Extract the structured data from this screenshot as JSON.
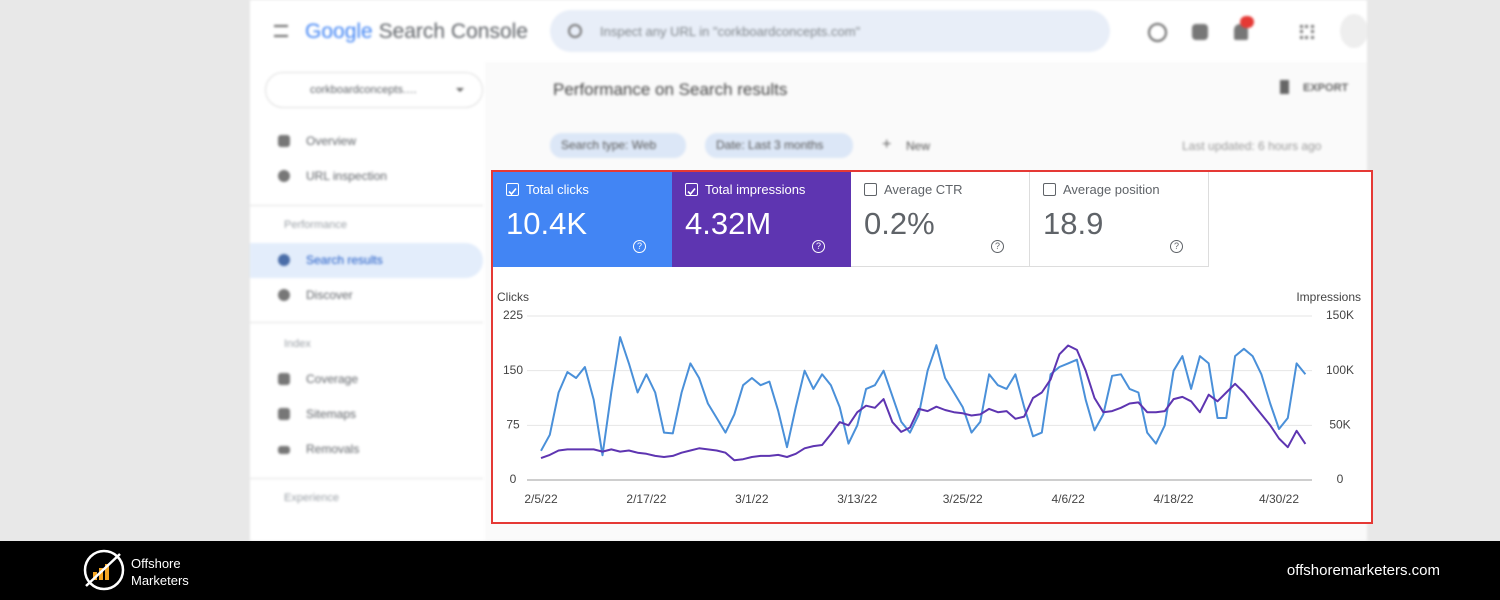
{
  "header": {
    "logo_google": "Google",
    "logo_product": "Search Console",
    "search_placeholder": "Inspect any URL in \"corkboardconcepts.com\""
  },
  "property_selector": "corkboardconcepts.…",
  "sidebar": {
    "top": [
      "Overview",
      "URL inspection"
    ],
    "sections": [
      {
        "title": "Performance",
        "items": [
          "Search results",
          "Discover"
        ]
      },
      {
        "title": "Index",
        "items": [
          "Coverage",
          "Sitemaps",
          "Removals"
        ]
      },
      {
        "title": "Experience"
      }
    ]
  },
  "page": {
    "title": "Performance on Search results",
    "export": "EXPORT",
    "filters": [
      "Search type: Web",
      "Date: Last 3 months"
    ],
    "new_filter": "New",
    "last_updated": "Last updated: 6 hours ago"
  },
  "metrics": [
    {
      "label": "Total clicks",
      "value": "10.4K",
      "checked": true,
      "color": "#4285f4"
    },
    {
      "label": "Total impressions",
      "value": "4.32M",
      "checked": true,
      "color": "#5e35b1"
    },
    {
      "label": "Average CTR",
      "value": "0.2%",
      "checked": false
    },
    {
      "label": "Average position",
      "value": "18.9",
      "checked": false
    }
  ],
  "chart_data": {
    "type": "line",
    "y_label": "Clicks",
    "y2_label": "Impressions",
    "categories": [
      "2/5/22",
      null,
      null,
      null,
      null,
      null,
      null,
      null,
      null,
      null,
      null,
      null,
      "2/17/22",
      null,
      null,
      null,
      null,
      null,
      null,
      null,
      null,
      null,
      null,
      null,
      "3/1/22",
      null,
      null,
      null,
      null,
      null,
      null,
      null,
      null,
      null,
      null,
      null,
      "3/13/22",
      null,
      null,
      null,
      null,
      null,
      null,
      null,
      null,
      null,
      null,
      null,
      "3/25/22",
      null,
      null,
      null,
      null,
      null,
      null,
      null,
      null,
      null,
      null,
      null,
      "4/6/22",
      null,
      null,
      null,
      null,
      null,
      null,
      null,
      null,
      null,
      null,
      null,
      "4/18/22",
      null,
      null,
      null,
      null,
      null,
      null,
      null,
      null,
      null,
      null,
      null,
      "4/30/22",
      null,
      null,
      null
    ],
    "series": [
      {
        "name": "Clicks",
        "color": "#4a90d9",
        "values": [
          40,
          62,
          120,
          148,
          140,
          155,
          110,
          34,
          120,
          196,
          160,
          120,
          145,
          120,
          65,
          64,
          120,
          160,
          140,
          105,
          85,
          65,
          90,
          130,
          140,
          130,
          135,
          95,
          45,
          100,
          150,
          125,
          145,
          130,
          100,
          50,
          75,
          125,
          130,
          150,
          115,
          80,
          65,
          90,
          150,
          185,
          140,
          120,
          100,
          65,
          80,
          145,
          130,
          125,
          145,
          100,
          60,
          65,
          145,
          155,
          160,
          165,
          110,
          68,
          90,
          143,
          145,
          125,
          120,
          65,
          50,
          75,
          150,
          170,
          125,
          170,
          160,
          85,
          85,
          170,
          180,
          170,
          145,
          105,
          70,
          85,
          160,
          145
        ]
      },
      {
        "name": "Impressions",
        "color": "#5e35b1",
        "axis": "y2",
        "values": [
          20000,
          23000,
          27000,
          28000,
          28000,
          28000,
          28000,
          26000,
          28000,
          26000,
          27000,
          25000,
          24000,
          22000,
          21000,
          22000,
          25000,
          27000,
          29000,
          28000,
          27000,
          25000,
          18000,
          19000,
          21000,
          22000,
          22000,
          23000,
          21000,
          24000,
          29000,
          31000,
          32000,
          42000,
          53000,
          50000,
          62000,
          68000,
          66000,
          74000,
          53000,
          44000,
          48000,
          65000,
          63000,
          67000,
          64000,
          62000,
          61000,
          59000,
          60000,
          65000,
          62000,
          63000,
          56000,
          58000,
          75000,
          80000,
          92000,
          115000,
          123000,
          119000,
          100000,
          75000,
          62000,
          63000,
          66000,
          70000,
          71000,
          62000,
          62000,
          63000,
          74000,
          76000,
          72000,
          62000,
          78000,
          72000,
          80000,
          88000,
          80000,
          70000,
          60000,
          50000,
          38000,
          30000,
          45000,
          33000
        ]
      }
    ],
    "ylim": [
      0,
      225
    ],
    "yticks": [
      0,
      75,
      150,
      225
    ],
    "y2lim": [
      0,
      150000
    ],
    "y2ticks": [
      0,
      {
        "value": 50000,
        "label": "50K"
      },
      {
        "value": 100000,
        "label": "100K"
      },
      {
        "value": 150000,
        "label": "150K"
      }
    ],
    "grid": true
  },
  "footer": {
    "brand": [
      "Offshore",
      "Marketers"
    ],
    "url": "offshoremarketers.com"
  }
}
